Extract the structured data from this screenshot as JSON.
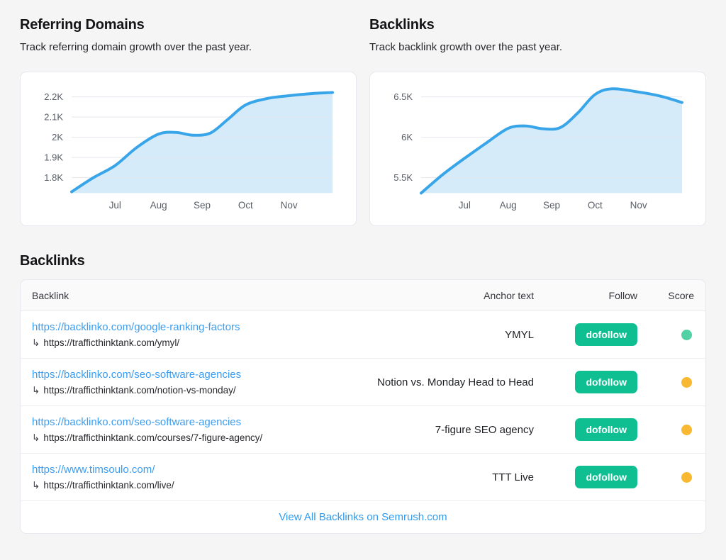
{
  "colors": {
    "page_bg": "#f5f5f6",
    "link_blue": "#3b9df1",
    "badge_green": "#0fbf92",
    "score_green": "#52d1a4",
    "score_yellow": "#f8b832",
    "chart_line": "#38a5e9",
    "chart_fill": "#d6ebf9"
  },
  "sections": {
    "referring_domains": {
      "title": "Referring Domains",
      "subtitle": "Track referring domain growth over the past year."
    },
    "backlinks_chart": {
      "title": "Backlinks",
      "subtitle": "Track backlink growth over the past year."
    },
    "backlinks_table": {
      "title": "Backlinks"
    }
  },
  "chart_data": [
    {
      "type": "area",
      "name": "referring-domains",
      "title": "Referring Domains",
      "grid": true,
      "legend": "none",
      "xlim": [
        0,
        6
      ],
      "x_tick_positions": [
        1,
        2,
        3,
        4,
        5
      ],
      "x_tick_labels": [
        "Jul",
        "Aug",
        "Sep",
        "Oct",
        "Nov"
      ],
      "y_ticks": [
        {
          "label": "2.2K",
          "value": 2200
        },
        {
          "label": "2.1K",
          "value": 2100
        },
        {
          "label": "2K",
          "value": 2000
        },
        {
          "label": "1.9K",
          "value": 1900
        },
        {
          "label": "1.8K",
          "value": 1800
        }
      ],
      "line_color": "#38a5e9",
      "fill_color": "#d6ebf9",
      "series": [
        {
          "name": "Referring Domains",
          "points": [
            [
              0,
              1730
            ],
            [
              0.5,
              1800
            ],
            [
              1,
              1860
            ],
            [
              1.5,
              1950
            ],
            [
              2,
              2016
            ],
            [
              2.4,
              2024
            ],
            [
              2.8,
              2010
            ],
            [
              3.2,
              2022
            ],
            [
              3.6,
              2090
            ],
            [
              4,
              2160
            ],
            [
              4.5,
              2192
            ],
            [
              5,
              2206
            ],
            [
              5.5,
              2216
            ],
            [
              6,
              2222
            ]
          ]
        }
      ]
    },
    {
      "type": "area",
      "name": "backlinks",
      "title": "Backlinks",
      "grid": true,
      "legend": "none",
      "xlim": [
        0,
        6
      ],
      "x_tick_positions": [
        1,
        2,
        3,
        4,
        5
      ],
      "x_tick_labels": [
        "Jul",
        "Aug",
        "Sep",
        "Oct",
        "Nov"
      ],
      "y_ticks": [
        {
          "label": "6.5K",
          "value": 6500
        },
        {
          "label": "6K",
          "value": 6000
        },
        {
          "label": "5.5K",
          "value": 5500
        }
      ],
      "line_color": "#38a5e9",
      "fill_color": "#d6ebf9",
      "series": [
        {
          "name": "Backlinks",
          "points": [
            [
              0,
              5300
            ],
            [
              0.5,
              5540
            ],
            [
              1,
              5740
            ],
            [
              1.5,
              5930
            ],
            [
              2,
              6110
            ],
            [
              2.4,
              6140
            ],
            [
              2.8,
              6105
            ],
            [
              3.2,
              6120
            ],
            [
              3.6,
              6300
            ],
            [
              4,
              6530
            ],
            [
              4.4,
              6600
            ],
            [
              5,
              6560
            ],
            [
              5.5,
              6510
            ],
            [
              6,
              6430
            ]
          ]
        }
      ]
    }
  ],
  "table": {
    "columns": [
      "Backlink",
      "Anchor text",
      "Follow",
      "Score"
    ],
    "arrow_glyph": "↳",
    "rows": [
      {
        "source_url": "https://backlinko.com/google-ranking-factors",
        "target_url": "https://trafficthinktank.com/ymyl/",
        "anchor_text": "YMYL",
        "follow": "dofollow",
        "score_color": "#52d1a4"
      },
      {
        "source_url": "https://backlinko.com/seo-software-agencies",
        "target_url": "https://trafficthinktank.com/notion-vs-monday/",
        "anchor_text": "Notion vs. Monday Head to Head",
        "follow": "dofollow",
        "score_color": "#f8b832"
      },
      {
        "source_url": "https://backlinko.com/seo-software-agencies",
        "target_url": "https://trafficthinktank.com/courses/7-figure-agency/",
        "anchor_text": "7-figure SEO agency",
        "follow": "dofollow",
        "score_color": "#f8b832"
      },
      {
        "source_url": "https://www.timsoulo.com/",
        "target_url": "https://trafficthinktank.com/live/",
        "anchor_text": "TTT Live",
        "follow": "dofollow",
        "score_color": "#f8b832"
      }
    ],
    "footer_link": "View All Backlinks on Semrush.com"
  }
}
